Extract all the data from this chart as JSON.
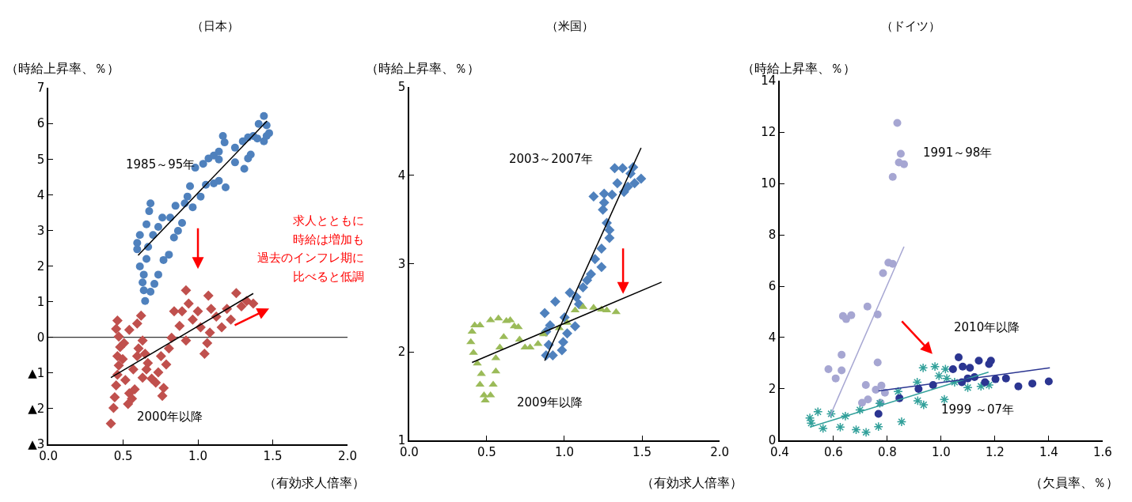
{
  "chart_data": [
    {
      "type": "scatter",
      "title": "（日本）",
      "ylabel": "（時給上昇率、％）",
      "xlabel": "（有効求人倍率）",
      "xlim": [
        0,
        2
      ],
      "ylim": [
        -3,
        7
      ],
      "xticks": [
        {
          "value": 0,
          "label": "0.0"
        },
        {
          "value": 0.5,
          "label": "0.5"
        },
        {
          "value": 1,
          "label": "1.0"
        },
        {
          "value": 1.5,
          "label": "1.5"
        },
        {
          "value": 2,
          "label": "2.0"
        }
      ],
      "yticks": [
        {
          "value": -3,
          "label": "▲3"
        },
        {
          "value": -2,
          "label": "▲2"
        },
        {
          "value": -1,
          "label": "▲1"
        },
        0,
        1,
        2,
        3,
        4,
        5,
        6,
        7
      ],
      "grid": false,
      "ref_lines": [
        {
          "axis": "y",
          "value": 0,
          "color": "#000000"
        }
      ],
      "annotations": [
        "求人とともに",
        "時給は増加も",
        "過去のインフレ期に",
        "比べると低調"
      ],
      "series": [
        {
          "name": "1985～95年",
          "type": "scatter",
          "marker": "circle",
          "color": "#4f81bd",
          "x": [
            0.647,
            0.638,
            0.683,
            0.63,
            0.709,
            0.638,
            0.735,
            0.612,
            0.656,
            0.77,
            0.806,
            0.594,
            0.667,
            0.594,
            0.7,
            0.612,
            0.656,
            0.735,
            0.84,
            0.867,
            0.894,
            0.762,
            0.815,
            0.674,
            0.683,
            0.85,
            0.912,
            0.93,
            0.965,
            1.018,
            0.947,
            1.053,
            1.106,
            1.14,
            1.185,
            0.982,
            1.035,
            1.071,
            1.106,
            1.14,
            1.14,
            1.167,
            1.178,
            1.248,
            1.31,
            1.248,
            1.3,
            1.335,
            1.353,
            1.335,
            1.37,
            1.397,
            1.406,
            1.441,
            1.459,
            1.459,
            1.441,
            1.476
          ],
          "values": [
            1.02,
            1.32,
            1.28,
            1.54,
            1.5,
            1.76,
            1.76,
            1.99,
            2.2,
            2.17,
            2.32,
            2.47,
            2.54,
            2.65,
            2.87,
            2.87,
            3.17,
            3.1,
            2.8,
            2.99,
            3.21,
            3.36,
            3.36,
            3.54,
            3.76,
            3.69,
            3.76,
            3.95,
            3.65,
            3.95,
            4.24,
            4.28,
            4.32,
            4.39,
            4.21,
            4.76,
            4.87,
            5.02,
            5.1,
            4.99,
            5.21,
            5.65,
            5.47,
            4.91,
            4.73,
            5.32,
            5.5,
            5.02,
            5.13,
            5.61,
            5.65,
            5.58,
            5.99,
            6.21,
            5.95,
            5.65,
            5.5,
            5.73
          ]
        },
        {
          "name": "2000年以降",
          "type": "scatter",
          "marker": "diamond",
          "color": "#c0504d",
          "x": [
            0.436,
            0.444,
            0.453,
            0.462,
            0.471,
            0.462,
            0.48,
            0.471,
            0.462,
            0.453,
            0.506,
            0.541,
            0.497,
            0.515,
            0.541,
            0.533,
            0.559,
            0.577,
            0.568,
            0.594,
            0.603,
            0.62,
            0.594,
            0.63,
            0.647,
            0.665,
            0.63,
            0.656,
            0.691,
            0.718,
            0.735,
            0.753,
            0.762,
            0.771,
            0.788,
            0.806,
            0.824,
            0.841,
            0.877,
            0.894,
            0.92,
            0.938,
            0.92,
            0.965,
            1.0,
            1.018,
            1.044,
            1.062,
            1.07,
            1.08,
            1.088,
            1.123,
            1.159,
            1.194,
            1.22,
            1.256,
            1.291,
            1.326,
            1.37,
            0.418
          ],
          "values": [
            -1.98,
            -1.68,
            -1.35,
            -1.05,
            -0.79,
            -0.53,
            -0.27,
            0.02,
            0.47,
            0.24,
            -0.16,
            0.21,
            -0.61,
            -1.2,
            -1.57,
            -1.87,
            -1.72,
            -1.46,
            -0.9,
            -0.53,
            -0.31,
            0.61,
            0.39,
            -0.09,
            -0.46,
            -0.72,
            -1.13,
            -0.9,
            -1.16,
            -1.27,
            -0.98,
            -0.53,
            -1.64,
            -1.42,
            -0.76,
            -0.31,
            -0.01,
            0.73,
            0.32,
            0.73,
            1.32,
            0.95,
            -0.09,
            0.5,
            0.73,
            0.28,
            -0.46,
            -0.16,
            1.17,
            0.13,
            0.8,
            0.58,
            0.28,
            0.8,
            0.5,
            1.24,
            0.87,
            1.02,
            0.95,
            -2.42
          ]
        },
        {
          "type": "line",
          "marker": "none",
          "color": "#000000",
          "x": [
            0.6,
            1.462
          ],
          "values": [
            2.3,
            6.07
          ]
        },
        {
          "type": "line",
          "marker": "none",
          "color": "#000000",
          "x": [
            0.418,
            1.37
          ],
          "values": [
            -1.13,
            1.23
          ]
        }
      ]
    },
    {
      "type": "scatter",
      "title": "（米国）",
      "ylabel": "（時給上昇率、％）",
      "xlabel": "（有効求人倍率）",
      "xlim": [
        0,
        2
      ],
      "ylim": [
        1,
        5
      ],
      "xticks": [
        {
          "value": 0,
          "label": "0.0"
        },
        {
          "value": 0.5,
          "label": "0.5"
        },
        {
          "value": 1,
          "label": "1.0"
        },
        {
          "value": 1.5,
          "label": "1.5"
        },
        {
          "value": 2,
          "label": "2.0"
        }
      ],
      "yticks": [
        1,
        2,
        3,
        4,
        5
      ],
      "grid": false,
      "series": [
        {
          "name": "2003～2007年",
          "type": "scatter",
          "marker": "diamond",
          "color": "#4f81bd",
          "x": [
            0.882,
            0.925,
            0.899,
            0.882,
            0.908,
            0.873,
            0.941,
            0.984,
            0.992,
            1.018,
            1.001,
            1.069,
            1.035,
            1.077,
            1.094,
            1.12,
            1.146,
            1.171,
            1.197,
            1.239,
            1.239,
            1.29,
            1.29,
            1.273,
            1.248,
            1.256,
            1.188,
            1.256,
            1.307,
            1.341,
            1.324,
            1.375,
            1.384,
            1.409,
            1.426,
            1.443,
            1.452,
            1.494
          ],
          "values": [
            1.96,
            1.96,
            2.08,
            2.23,
            2.3,
            2.44,
            2.57,
            2.02,
            2.11,
            2.21,
            2.39,
            2.29,
            2.67,
            2.62,
            2.54,
            2.73,
            2.81,
            2.88,
            3.05,
            2.96,
            3.17,
            3.29,
            3.38,
            3.46,
            3.61,
            3.69,
            3.76,
            3.79,
            3.78,
            3.91,
            4.08,
            4.08,
            3.81,
            3.87,
            4.02,
            4.09,
            3.91,
            3.96
          ]
        },
        {
          "name": "2009年以降",
          "type": "scatter",
          "marker": "triangle",
          "color": "#9bbb59",
          "x": [
            0.397,
            0.405,
            0.422,
            0.456,
            0.414,
            0.439,
            0.465,
            0.456,
            0.482,
            0.49,
            0.524,
            0.541,
            0.558,
            0.558,
            0.584,
            0.609,
            0.626,
            0.651,
            0.524,
            0.575,
            0.677,
            0.703,
            0.711,
            0.746,
            0.779,
            0.83,
            0.865,
            0.967,
            1.018,
            1.069,
            1.12,
            1.188,
            1.239,
            1.273,
            1.333
          ],
          "values": [
            2.11,
            2.23,
            2.3,
            2.3,
            1.99,
            1.87,
            1.75,
            1.63,
            1.51,
            1.45,
            1.51,
            1.63,
            1.78,
            1.93,
            2.05,
            2.17,
            2.35,
            2.36,
            2.36,
            2.38,
            2.29,
            2.28,
            2.14,
            2.05,
            2.05,
            2.09,
            2.2,
            2.27,
            2.33,
            2.47,
            2.51,
            2.5,
            2.48,
            2.47,
            2.45
          ]
        },
        {
          "type": "line",
          "marker": "none",
          "color": "#000000",
          "x": [
            0.873,
            1.494
          ],
          "values": [
            1.9,
            4.31
          ]
        },
        {
          "type": "line",
          "marker": "none",
          "color": "#000000",
          "x": [
            0.405,
            1.626
          ],
          "values": [
            1.88,
            2.79
          ]
        }
      ]
    },
    {
      "type": "scatter",
      "title": "（ドイツ）",
      "ylabel": "（時給上昇率、％）",
      "xlabel": "（欠員率、％）",
      "xlim": [
        0.4,
        1.6
      ],
      "ylim": [
        0,
        14
      ],
      "xticks": [
        0.4,
        0.6,
        0.8,
        {
          "value": 1,
          "label": "1.0"
        },
        1.2,
        1.4,
        1.6
      ],
      "yticks": [
        0,
        2,
        4,
        6,
        8,
        10,
        12,
        14
      ],
      "grid": false,
      "series": [
        {
          "name": "1991～98年",
          "type": "scatter",
          "marker": "circle",
          "color": "#a6a6d2",
          "x": [
            0.837,
            0.85,
            0.843,
            0.862,
            0.82,
            0.804,
            0.82,
            0.784,
            0.726,
            0.764,
            0.635,
            0.647,
            0.666,
            0.63,
            0.581,
            0.63,
            0.608,
            0.764,
            0.72,
            0.757,
            0.778,
            0.791,
            0.706,
            0.728,
            0.775
          ],
          "values": [
            12.36,
            11.16,
            10.82,
            10.75,
            10.26,
            6.92,
            6.87,
            6.51,
            5.21,
            4.9,
            4.84,
            4.72,
            4.87,
            3.33,
            2.77,
            2.72,
            2.41,
            3.03,
            2.15,
            1.97,
            2.13,
            1.85,
            1.46,
            1.59,
            1.46
          ]
        },
        {
          "name": "1999 ～07年",
          "type": "scatter",
          "marker": "cross",
          "color": "#31a09a",
          "x": [
            0.512,
            0.517,
            0.542,
            0.561,
            0.591,
            0.625,
            0.644,
            0.684,
            0.698,
            0.721,
            0.767,
            0.772,
            0.84,
            0.853,
            0.913,
            0.935,
            0.911,
            0.933,
            0.977,
            0.992,
            1.012,
            1.016,
            1.021,
            1.05,
            1.099,
            1.148,
            1.178
          ],
          "values": [
            0.87,
            0.67,
            1.11,
            0.46,
            1.03,
            0.51,
            0.94,
            0.41,
            1.18,
            0.31,
            0.53,
            1.44,
            1.9,
            0.72,
            1.54,
            1.38,
            2.26,
            2.82,
            2.87,
            2.51,
            1.59,
            2.77,
            2.41,
            2.26,
            2.05,
            2.1,
            2.15
          ]
        },
        {
          "name": "2010年以降",
          "type": "scatter",
          "marker": "circle",
          "color": "#2b3591",
          "x": [
            0.767,
            0.845,
            0.916,
            0.97,
            1.065,
            1.044,
            1.08,
            1.107,
            1.077,
            1.099,
            1.124,
            1.14,
            1.178,
            1.185,
            1.163,
            1.202,
            1.241,
            1.287,
            1.339,
            1.4
          ],
          "values": [
            1.03,
            1.64,
            2.0,
            2.15,
            3.23,
            2.77,
            2.87,
            2.82,
            2.26,
            2.41,
            2.46,
            3.1,
            2.97,
            3.1,
            2.26,
            2.38,
            2.41,
            2.1,
            2.21,
            2.29
          ]
        },
        {
          "type": "line",
          "marker": "none",
          "color": "#a6a6d2",
          "x": [
            0.586,
            0.862
          ],
          "values": [
            0.92,
            7.54
          ]
        },
        {
          "type": "line",
          "marker": "none",
          "color": "#31a09a",
          "x": [
            0.512,
            1.176
          ],
          "values": [
            0.51,
            2.65
          ]
        },
        {
          "type": "line",
          "marker": "none",
          "color": "#2b3591",
          "x": [
            0.767,
            1.404
          ],
          "values": [
            1.92,
            2.82
          ]
        }
      ]
    }
  ]
}
